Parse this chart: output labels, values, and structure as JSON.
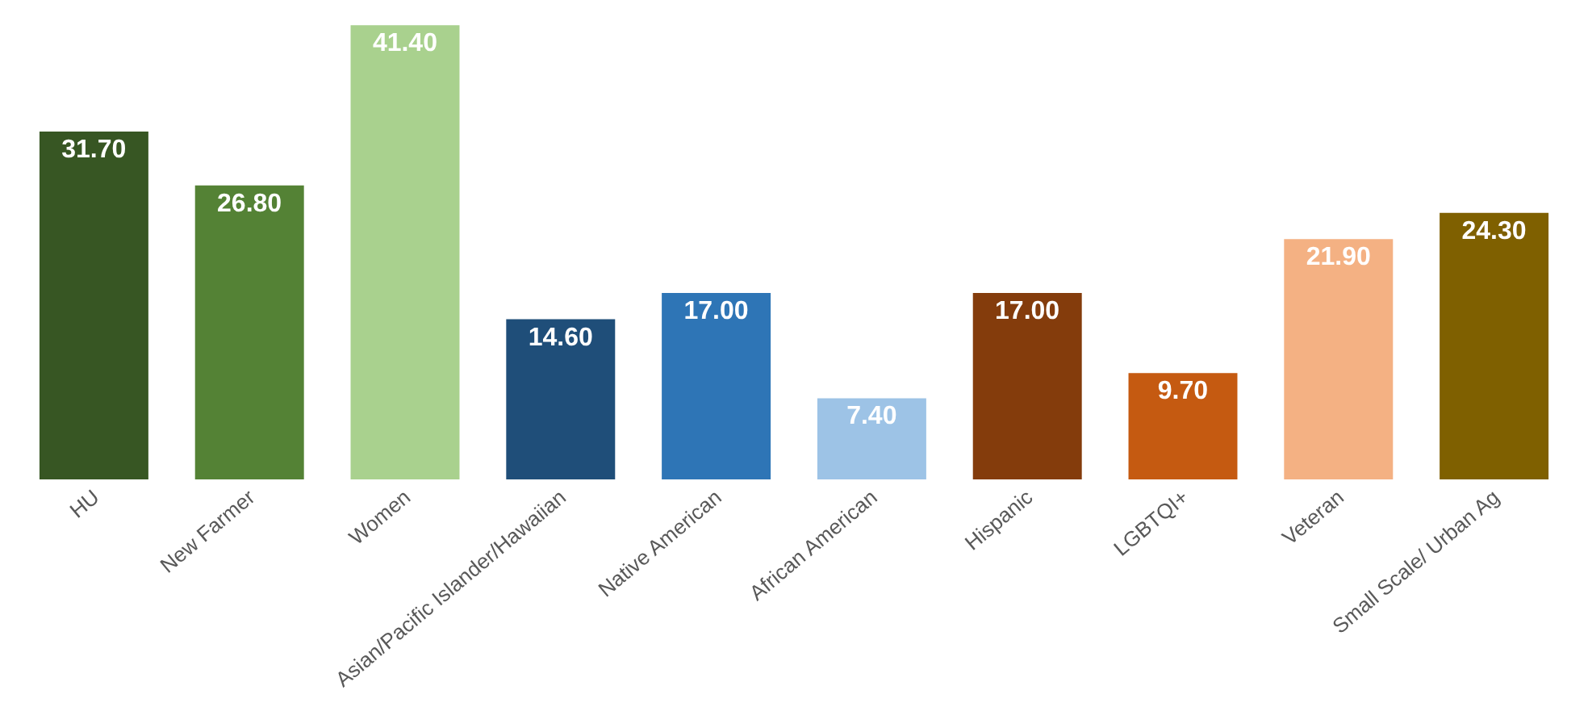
{
  "chart_data": {
    "type": "bar",
    "categories": [
      "HU",
      "New Farmer",
      "Women",
      "Asian/Pacific Islander/Hawaiian",
      "Native American",
      "African American",
      "Hispanic",
      "LGBTQI+",
      "Veteran",
      "Small Scale/ Urban Ag"
    ],
    "values": [
      31.7,
      26.8,
      41.4,
      14.6,
      17.0,
      7.4,
      17.0,
      9.7,
      21.9,
      24.3
    ],
    "value_labels": [
      "31.70",
      "26.80",
      "41.40",
      "14.60",
      "17.00",
      "7.40",
      "17.00",
      "9.70",
      "21.90",
      "24.30"
    ],
    "colors": [
      "#375623",
      "#548235",
      "#a9d18e",
      "#1f4e79",
      "#2e75b6",
      "#9dc3e6",
      "#843c0c",
      "#c55a11",
      "#f4b183",
      "#7f6000"
    ],
    "legend": false
  }
}
